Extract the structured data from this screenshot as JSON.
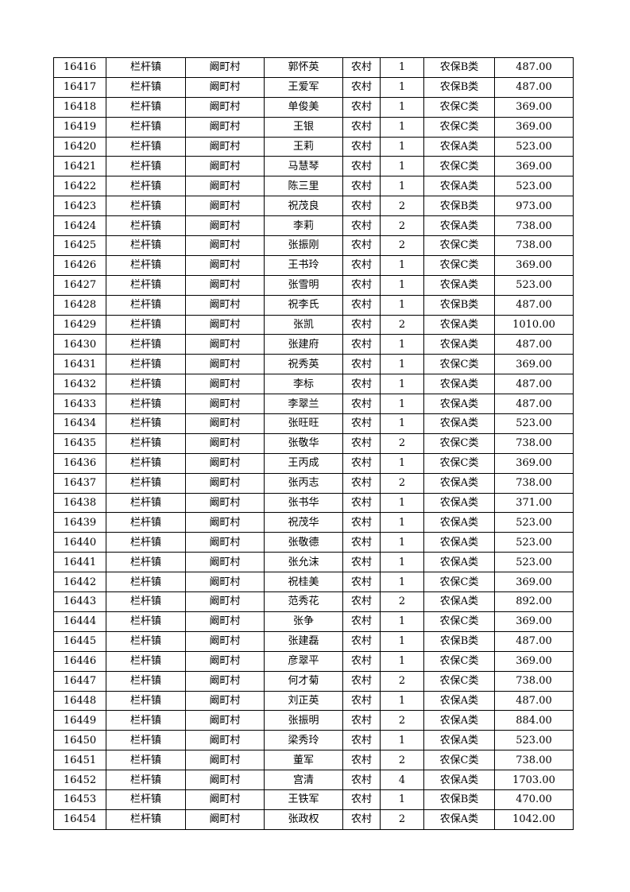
{
  "table": {
    "rows": [
      [
        "16416",
        "栏杆镇",
        "阚町村",
        "郭怀英",
        "农村",
        "1",
        "农保B类",
        "487.00"
      ],
      [
        "16417",
        "栏杆镇",
        "阚町村",
        "王爱军",
        "农村",
        "1",
        "农保B类",
        "487.00"
      ],
      [
        "16418",
        "栏杆镇",
        "阚町村",
        "单俊美",
        "农村",
        "1",
        "农保C类",
        "369.00"
      ],
      [
        "16419",
        "栏杆镇",
        "阚町村",
        "王银",
        "农村",
        "1",
        "农保C类",
        "369.00"
      ],
      [
        "16420",
        "栏杆镇",
        "阚町村",
        "王莉",
        "农村",
        "1",
        "农保A类",
        "523.00"
      ],
      [
        "16421",
        "栏杆镇",
        "阚町村",
        "马慧琴",
        "农村",
        "1",
        "农保C类",
        "369.00"
      ],
      [
        "16422",
        "栏杆镇",
        "阚町村",
        "陈三里",
        "农村",
        "1",
        "农保A类",
        "523.00"
      ],
      [
        "16423",
        "栏杆镇",
        "阚町村",
        "祝茂良",
        "农村",
        "2",
        "农保B类",
        "973.00"
      ],
      [
        "16424",
        "栏杆镇",
        "阚町村",
        "李莉",
        "农村",
        "2",
        "农保A类",
        "738.00"
      ],
      [
        "16425",
        "栏杆镇",
        "阚町村",
        "张振刚",
        "农村",
        "2",
        "农保C类",
        "738.00"
      ],
      [
        "16426",
        "栏杆镇",
        "阚町村",
        "王书玲",
        "农村",
        "1",
        "农保C类",
        "369.00"
      ],
      [
        "16427",
        "栏杆镇",
        "阚町村",
        "张雪明",
        "农村",
        "1",
        "农保A类",
        "523.00"
      ],
      [
        "16428",
        "栏杆镇",
        "阚町村",
        "祝李氏",
        "农村",
        "1",
        "农保B类",
        "487.00"
      ],
      [
        "16429",
        "栏杆镇",
        "阚町村",
        "张凯",
        "农村",
        "2",
        "农保A类",
        "1010.00"
      ],
      [
        "16430",
        "栏杆镇",
        "阚町村",
        "张建府",
        "农村",
        "1",
        "农保A类",
        "487.00"
      ],
      [
        "16431",
        "栏杆镇",
        "阚町村",
        "祝秀英",
        "农村",
        "1",
        "农保C类",
        "369.00"
      ],
      [
        "16432",
        "栏杆镇",
        "阚町村",
        "李标",
        "农村",
        "1",
        "农保A类",
        "487.00"
      ],
      [
        "16433",
        "栏杆镇",
        "阚町村",
        "李翠兰",
        "农村",
        "1",
        "农保A类",
        "487.00"
      ],
      [
        "16434",
        "栏杆镇",
        "阚町村",
        "张旺旺",
        "农村",
        "1",
        "农保A类",
        "523.00"
      ],
      [
        "16435",
        "栏杆镇",
        "阚町村",
        "张敬华",
        "农村",
        "2",
        "农保C类",
        "738.00"
      ],
      [
        "16436",
        "栏杆镇",
        "阚町村",
        "王丙成",
        "农村",
        "1",
        "农保C类",
        "369.00"
      ],
      [
        "16437",
        "栏杆镇",
        "阚町村",
        "张丙志",
        "农村",
        "2",
        "农保A类",
        "738.00"
      ],
      [
        "16438",
        "栏杆镇",
        "阚町村",
        "张书华",
        "农村",
        "1",
        "农保A类",
        "371.00"
      ],
      [
        "16439",
        "栏杆镇",
        "阚町村",
        "祝茂华",
        "农村",
        "1",
        "农保A类",
        "523.00"
      ],
      [
        "16440",
        "栏杆镇",
        "阚町村",
        "张敬德",
        "农村",
        "1",
        "农保A类",
        "523.00"
      ],
      [
        "16441",
        "栏杆镇",
        "阚町村",
        "张允沫",
        "农村",
        "1",
        "农保A类",
        "523.00"
      ],
      [
        "16442",
        "栏杆镇",
        "阚町村",
        "祝桂美",
        "农村",
        "1",
        "农保C类",
        "369.00"
      ],
      [
        "16443",
        "栏杆镇",
        "阚町村",
        "范秀花",
        "农村",
        "2",
        "农保A类",
        "892.00"
      ],
      [
        "16444",
        "栏杆镇",
        "阚町村",
        "张争",
        "农村",
        "1",
        "农保C类",
        "369.00"
      ],
      [
        "16445",
        "栏杆镇",
        "阚町村",
        "张建磊",
        "农村",
        "1",
        "农保B类",
        "487.00"
      ],
      [
        "16446",
        "栏杆镇",
        "阚町村",
        "彦翠平",
        "农村",
        "1",
        "农保C类",
        "369.00"
      ],
      [
        "16447",
        "栏杆镇",
        "阚町村",
        "何才菊",
        "农村",
        "2",
        "农保C类",
        "738.00"
      ],
      [
        "16448",
        "栏杆镇",
        "阚町村",
        "刘正英",
        "农村",
        "1",
        "农保A类",
        "487.00"
      ],
      [
        "16449",
        "栏杆镇",
        "阚町村",
        "张振明",
        "农村",
        "2",
        "农保A类",
        "884.00"
      ],
      [
        "16450",
        "栏杆镇",
        "阚町村",
        "梁秀玲",
        "农村",
        "1",
        "农保A类",
        "523.00"
      ],
      [
        "16451",
        "栏杆镇",
        "阚町村",
        "董军",
        "农村",
        "2",
        "农保C类",
        "738.00"
      ],
      [
        "16452",
        "栏杆镇",
        "阚町村",
        "宫清",
        "农村",
        "4",
        "农保A类",
        "1703.00"
      ],
      [
        "16453",
        "栏杆镇",
        "阚町村",
        "王铁军",
        "农村",
        "1",
        "农保B类",
        "470.00"
      ],
      [
        "16454",
        "栏杆镇",
        "阚町村",
        "张政权",
        "农村",
        "2",
        "农保A类",
        "1042.00"
      ]
    ]
  }
}
